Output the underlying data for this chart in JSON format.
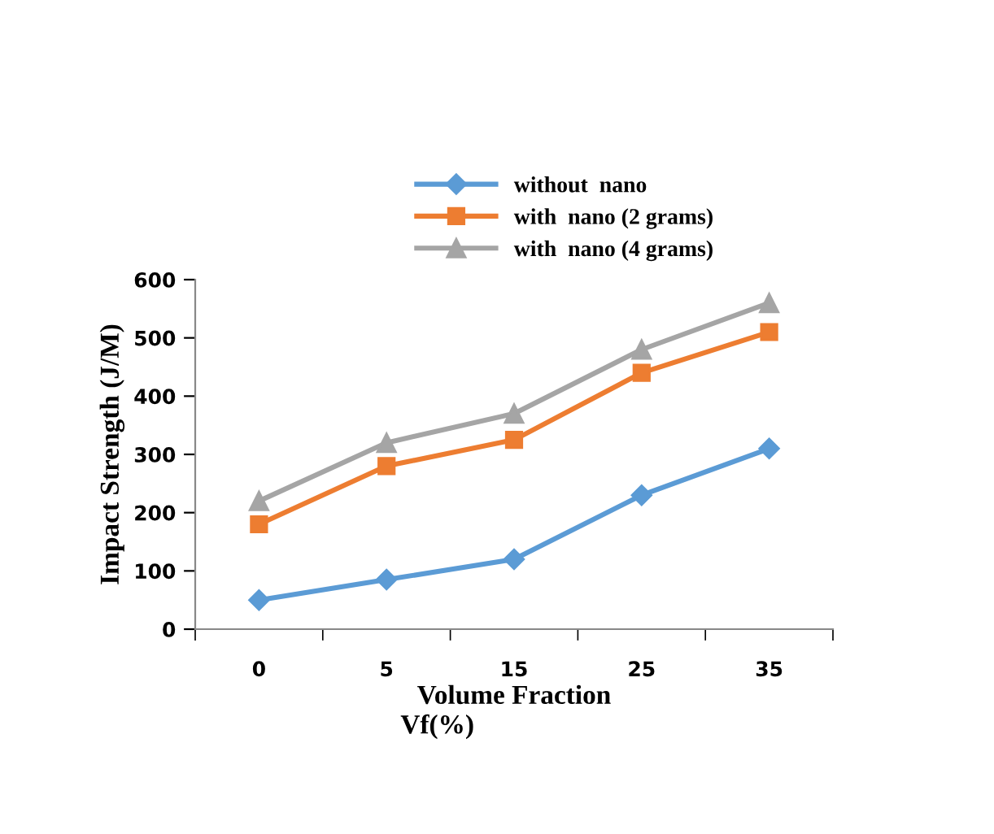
{
  "chart_data": {
    "type": "line",
    "xlabel": "Volume Fraction",
    "ylabel": "Impact Strength (J/M)",
    "annotations": [
      "Vf(%)"
    ],
    "categories": [
      "0",
      "5",
      "15",
      "25",
      "35"
    ],
    "series": [
      {
        "name": "without  nano",
        "color": "#5b9bd5",
        "marker": "diamond",
        "values": [
          50,
          85,
          120,
          230,
          310
        ]
      },
      {
        "name": "with  nano (2 grams)",
        "color": "#ed7d31",
        "marker": "square",
        "values": [
          180,
          280,
          325,
          440,
          510
        ]
      },
      {
        "name": "with  nano (4 grams)",
        "color": "#a5a5a5",
        "marker": "triangle",
        "values": [
          220,
          320,
          370,
          480,
          560
        ]
      }
    ],
    "ylim": [
      0,
      600
    ],
    "yticks": [
      0,
      100,
      200,
      300,
      400,
      500,
      600
    ],
    "grid": false,
    "legend": "top"
  }
}
